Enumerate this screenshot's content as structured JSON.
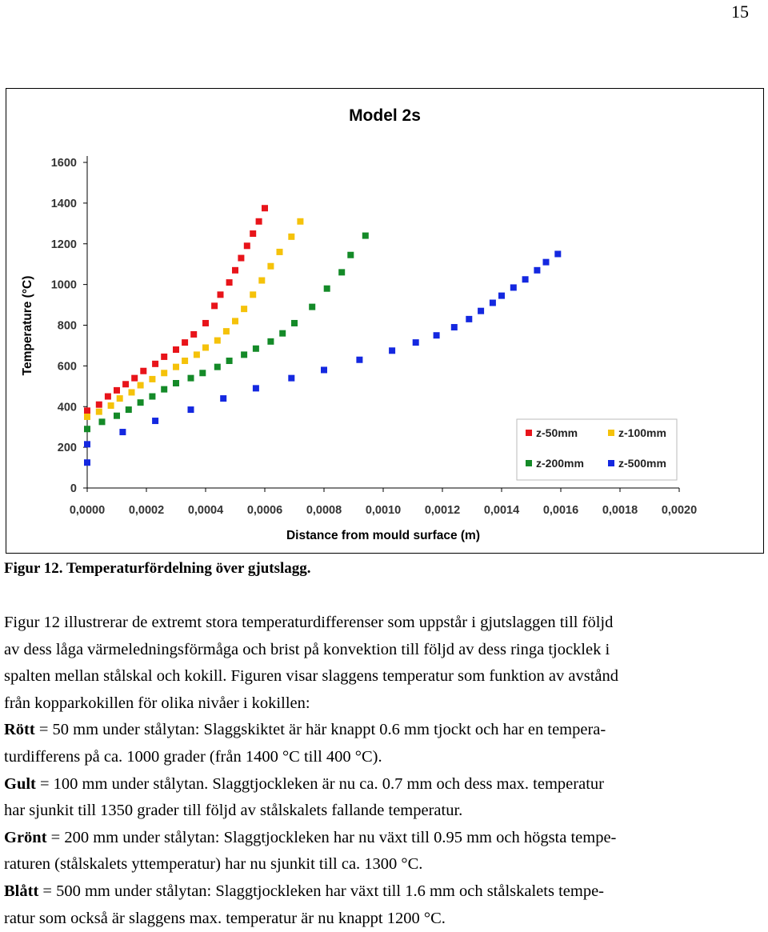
{
  "page_number": "15",
  "caption": "Figur 12. Temperaturfördelning över gjutslagg.",
  "chart_data": {
    "type": "scatter",
    "title": "Model 2s",
    "xlabel": "Distance from mould surface (m)",
    "ylabel": "Temperature (°C)",
    "xlim": [
      0,
      0.002
    ],
    "ylim": [
      0,
      1600
    ],
    "x_ticks": [
      "0,0000",
      "0,0002",
      "0,0004",
      "0,0006",
      "0,0008",
      "0,0010",
      "0,0012",
      "0,0014",
      "0,0016",
      "0,0018",
      "0,0020"
    ],
    "y_ticks": [
      "0",
      "200",
      "400",
      "600",
      "800",
      "1000",
      "1200",
      "1400",
      "1600"
    ],
    "grid": false,
    "legend_position": "bottom-right",
    "series": [
      {
        "name": "z-50mm",
        "color": "#e8141a",
        "points": [
          [
            0,
            380
          ],
          [
            4e-05,
            410
          ],
          [
            7e-05,
            450
          ],
          [
            0.0001,
            480
          ],
          [
            0.00013,
            510
          ],
          [
            0.00016,
            540
          ],
          [
            0.00019,
            575
          ],
          [
            0.00023,
            610
          ],
          [
            0.00026,
            645
          ],
          [
            0.0003,
            680
          ],
          [
            0.00033,
            715
          ],
          [
            0.00036,
            755
          ],
          [
            0.0004,
            810
          ],
          [
            0.00043,
            895
          ],
          [
            0.00045,
            950
          ],
          [
            0.00048,
            1010
          ],
          [
            0.0005,
            1070
          ],
          [
            0.00052,
            1130
          ],
          [
            0.00054,
            1190
          ],
          [
            0.00056,
            1250
          ],
          [
            0.00058,
            1310
          ],
          [
            0.0006,
            1375
          ]
        ]
      },
      {
        "name": "z-100mm",
        "color": "#f5c20a",
        "points": [
          [
            0,
            350
          ],
          [
            4e-05,
            375
          ],
          [
            8e-05,
            405
          ],
          [
            0.00011,
            440
          ],
          [
            0.00015,
            470
          ],
          [
            0.00018,
            505
          ],
          [
            0.00022,
            535
          ],
          [
            0.00026,
            565
          ],
          [
            0.0003,
            595
          ],
          [
            0.00033,
            625
          ],
          [
            0.00037,
            655
          ],
          [
            0.0004,
            690
          ],
          [
            0.00044,
            725
          ],
          [
            0.00047,
            770
          ],
          [
            0.0005,
            820
          ],
          [
            0.00053,
            880
          ],
          [
            0.00056,
            950
          ],
          [
            0.00059,
            1020
          ],
          [
            0.00062,
            1090
          ],
          [
            0.00065,
            1160
          ],
          [
            0.00069,
            1235
          ],
          [
            0.00072,
            1310
          ]
        ]
      },
      {
        "name": "z-200mm",
        "color": "#148a28",
        "points": [
          [
            0,
            290
          ],
          [
            5e-05,
            325
          ],
          [
            0.0001,
            355
          ],
          [
            0.00014,
            385
          ],
          [
            0.00018,
            420
          ],
          [
            0.00022,
            450
          ],
          [
            0.00026,
            485
          ],
          [
            0.0003,
            515
          ],
          [
            0.00035,
            540
          ],
          [
            0.00039,
            565
          ],
          [
            0.00044,
            595
          ],
          [
            0.00048,
            625
          ],
          [
            0.00053,
            655
          ],
          [
            0.00057,
            685
          ],
          [
            0.00062,
            720
          ],
          [
            0.00066,
            760
          ],
          [
            0.0007,
            810
          ],
          [
            0.00076,
            890
          ],
          [
            0.00081,
            980
          ],
          [
            0.00086,
            1060
          ],
          [
            0.00089,
            1145
          ],
          [
            0.00094,
            1240
          ]
        ]
      },
      {
        "name": "z-500mm",
        "color": "#1428e0",
        "points": [
          [
            0,
            125
          ],
          [
            0,
            215
          ],
          [
            0.00012,
            275
          ],
          [
            0.00023,
            330
          ],
          [
            0.00035,
            385
          ],
          [
            0.00046,
            440
          ],
          [
            0.00057,
            490
          ],
          [
            0.00069,
            540
          ],
          [
            0.0008,
            580
          ],
          [
            0.00092,
            630
          ],
          [
            0.00103,
            675
          ],
          [
            0.00111,
            715
          ],
          [
            0.00118,
            750
          ],
          [
            0.00124,
            790
          ],
          [
            0.00129,
            830
          ],
          [
            0.00133,
            870
          ],
          [
            0.00137,
            910
          ],
          [
            0.0014,
            945
          ],
          [
            0.00144,
            985
          ],
          [
            0.00148,
            1025
          ],
          [
            0.00152,
            1070
          ],
          [
            0.00155,
            1110
          ],
          [
            0.00159,
            1150
          ]
        ]
      }
    ]
  },
  "paragraphs": [
    {
      "term": "",
      "lines": [
        "Figur 12 illustrerar de extremt stora temperaturdifferenser som uppstår i gjutslaggen till följd",
        "av dess låga värmeledningsförmåga och brist på konvektion till följd av dess ringa tjocklek i",
        "spalten mellan stålskal och kokill. Figuren visar slaggens temperatur som funktion av avstånd",
        "från kopparkokillen för olika nivåer i kokillen:"
      ]
    },
    {
      "term": "Rött",
      "lines": [
        " = 50 mm under stålytan: Slaggskiktet är här knappt 0.6 mm tjockt och har en tempera-",
        "turdifferens på ca. 1000 grader (från 1400 °C till 400 °C)."
      ]
    },
    {
      "term": "Gult",
      "lines": [
        " = 100 mm under stålytan. Slaggtjockleken är nu ca. 0.7 mm och dess max. temperatur",
        "har sjunkit till 1350 grader till följd av stålskalets fallande temperatur."
      ]
    },
    {
      "term": "Grönt",
      "lines": [
        " = 200 mm under stålytan: Slaggtjockleken har nu växt till 0.95 mm och högsta tempe-",
        "raturen (stålskalets yttemperatur) har nu sjunkit till ca. 1300 °C."
      ]
    },
    {
      "term": "Blått",
      "lines": [
        " = 500 mm under stålytan: Slaggtjockleken har växt till 1.6 mm och stålskalets tempe-",
        "ratur som också är slaggens max. temperatur är nu knappt 1200 °C."
      ]
    }
  ]
}
